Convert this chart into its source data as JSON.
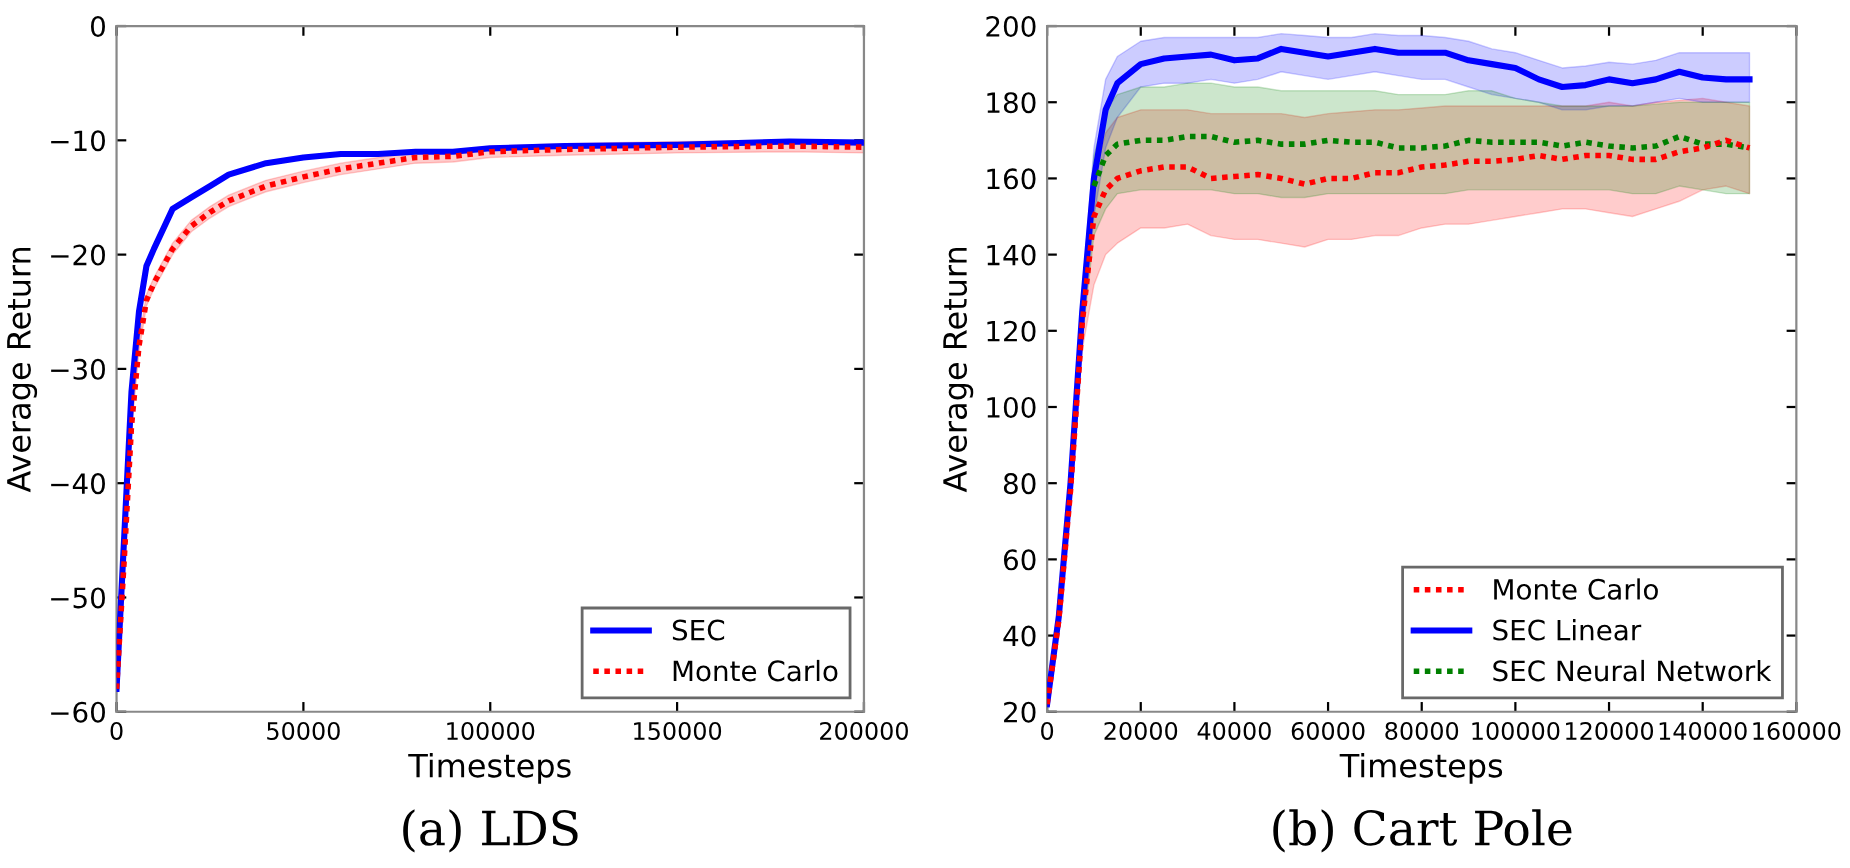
{
  "chart_data": [
    {
      "type": "line",
      "title": "(a) LDS",
      "xlabel": "Timesteps",
      "ylabel": "Average Return",
      "x": [
        0,
        2000,
        4000,
        6000,
        8000,
        10000,
        15000,
        20000,
        25000,
        30000,
        40000,
        50000,
        60000,
        70000,
        80000,
        90000,
        100000,
        120000,
        150000,
        180000,
        200000
      ],
      "series": [
        {
          "name": "SEC",
          "color": "#0000ff",
          "line_style": "solid",
          "values": [
            -58,
            -45,
            -32,
            -25,
            -21,
            -19.5,
            -16,
            -15,
            -14,
            -13,
            -12,
            -11.5,
            -11.2,
            -11.2,
            -11,
            -11,
            -10.7,
            -10.5,
            -10.4,
            -10.1,
            -10.2
          ]
        },
        {
          "name": "Monte Carlo",
          "color": "#ff0000",
          "line_style": "dotted",
          "values": [
            -58,
            -47,
            -35,
            -28,
            -24,
            -22.5,
            -19.5,
            -17.5,
            -16.3,
            -15.3,
            -14,
            -13.2,
            -12.5,
            -12,
            -11.5,
            -11.4,
            -11,
            -10.8,
            -10.6,
            -10.5,
            -10.6
          ],
          "lower": [
            -58.5,
            -47.5,
            -35.5,
            -28.5,
            -24.5,
            -23,
            -20,
            -18,
            -16.8,
            -15.8,
            -14.5,
            -13.7,
            -13,
            -12.5,
            -12,
            -11.9,
            -11.5,
            -11.3,
            -11.1,
            -11,
            -11.1
          ],
          "upper": [
            -57.5,
            -46.5,
            -34.5,
            -27.5,
            -23.5,
            -22,
            -19,
            -17,
            -15.8,
            -14.8,
            -13.5,
            -12.7,
            -12,
            -11.5,
            -11,
            -10.9,
            -10.5,
            -10.3,
            -10.1,
            -10,
            -10.1
          ]
        }
      ],
      "xlim": [
        0,
        200000
      ],
      "xticks": [
        0,
        50000,
        100000,
        150000,
        200000
      ],
      "ylim": [
        -60,
        0
      ],
      "yticks": [
        -60,
        -50,
        -40,
        -30,
        -20,
        -10,
        0
      ],
      "legend": "bottom right",
      "grid": false
    },
    {
      "type": "line",
      "title": "(b) Cart Pole",
      "xlabel": "Timesteps",
      "ylabel": "Average Return",
      "x": [
        0,
        2500,
        5000,
        7500,
        10000,
        12500,
        15000,
        20000,
        25000,
        30000,
        35000,
        40000,
        45000,
        50000,
        55000,
        60000,
        65000,
        70000,
        75000,
        80000,
        85000,
        90000,
        95000,
        100000,
        105000,
        110000,
        115000,
        120000,
        125000,
        130000,
        135000,
        140000,
        145000,
        150000
      ],
      "series": [
        {
          "name": "Monte Carlo",
          "color": "#ff0000",
          "line_style": "dotted",
          "values": [
            22,
            44,
            78,
            122,
            150,
            157,
            160,
            162,
            163,
            163,
            160,
            160.5,
            161,
            160,
            158.5,
            160,
            160,
            161.5,
            161.5,
            163,
            163.5,
            164.5,
            164.5,
            165,
            166,
            165,
            166,
            166,
            165,
            165,
            167,
            168,
            170,
            168
          ],
          "upper": [
            23,
            46,
            81,
            128,
            160,
            172,
            176,
            178,
            178,
            178,
            177,
            177,
            177,
            177,
            176,
            177,
            177.5,
            178,
            178,
            178.5,
            179,
            179,
            179,
            179,
            179,
            179,
            179,
            180,
            179,
            180,
            180.5,
            181,
            180,
            179
          ],
          "lower": [
            21,
            42,
            75,
            115,
            132,
            140,
            143,
            147,
            147,
            148,
            145,
            144,
            144,
            143,
            142,
            144,
            144,
            145,
            145,
            147,
            148,
            148,
            149,
            150,
            151,
            152,
            152,
            151,
            150,
            152,
            154,
            157,
            158,
            156
          ]
        },
        {
          "name": "SEC Linear",
          "color": "#0000ff",
          "line_style": "solid",
          "values": [
            22,
            45,
            80,
            125,
            160,
            178,
            185,
            190,
            191.5,
            192,
            192.5,
            191,
            191.5,
            194,
            193,
            192,
            193,
            194,
            193,
            193,
            193,
            191,
            190,
            189,
            186,
            184,
            184.5,
            186,
            185,
            186,
            188,
            186.5,
            186,
            186
          ],
          "upper": [
            23,
            47,
            83,
            130,
            168,
            186,
            192,
            196,
            197,
            197,
            197,
            197,
            197,
            198,
            197.5,
            197,
            197,
            198,
            197.5,
            197.5,
            197,
            196,
            194,
            193,
            191,
            189,
            189.5,
            190.5,
            190,
            191,
            193,
            193,
            193,
            193
          ],
          "lower": [
            21,
            43,
            77,
            118,
            150,
            168,
            176,
            184,
            185,
            185,
            186,
            185,
            186,
            188,
            187,
            186,
            187,
            188,
            187,
            186,
            186,
            184,
            182,
            181,
            180,
            178,
            178,
            179,
            179,
            180,
            181,
            180,
            180,
            180
          ]
        },
        {
          "name": "SEC Neural Network",
          "color": "#008000",
          "line_style": "dotted",
          "values": [
            null,
            null,
            null,
            null,
            158,
            166,
            169,
            170,
            170,
            171,
            171,
            169.5,
            170,
            169,
            169,
            170,
            169.5,
            169.5,
            168,
            168,
            168.5,
            170,
            169.5,
            169.5,
            169.5,
            168.5,
            169.5,
            168.5,
            168,
            168.5,
            171,
            169,
            169,
            168
          ],
          "upper": [
            23,
            47,
            83,
            130,
            166,
            178,
            182,
            184,
            184,
            185,
            185,
            184,
            184,
            183,
            183,
            183,
            183,
            183,
            182,
            182,
            182,
            183,
            183,
            181,
            180,
            179,
            179,
            179,
            179,
            179.5,
            180,
            180,
            180,
            180
          ],
          "lower": [
            21,
            43,
            77,
            118,
            145,
            152,
            156,
            157,
            157,
            157,
            157,
            156,
            156,
            155,
            155,
            156,
            156,
            156,
            156,
            156,
            156,
            157,
            157,
            157,
            157,
            157,
            157,
            157,
            156,
            156,
            158,
            157,
            156,
            156
          ]
        }
      ],
      "xlim": [
        0,
        160000
      ],
      "xticks": [
        0,
        20000,
        40000,
        60000,
        80000,
        100000,
        120000,
        140000,
        160000
      ],
      "ylim": [
        20,
        200
      ],
      "yticks": [
        20,
        40,
        60,
        80,
        100,
        120,
        140,
        160,
        180,
        200
      ],
      "legend": "bottom right",
      "grid": false
    }
  ]
}
